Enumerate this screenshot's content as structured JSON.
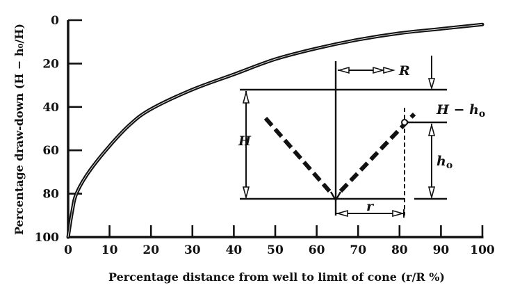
{
  "chart_data": {
    "type": "line",
    "title": "",
    "xlabel": "Percentage distance from well to limit of cone (r/R %)",
    "ylabel": "Percentage draw-down (H − h₀/H)",
    "xlim": [
      0,
      100
    ],
    "ylim": [
      100,
      0
    ],
    "y_inverted": true,
    "grid": false,
    "legend": null,
    "x_ticks": [
      0,
      10,
      20,
      30,
      40,
      50,
      60,
      70,
      80,
      90,
      100
    ],
    "y_ticks": [
      0,
      20,
      40,
      60,
      80,
      100
    ],
    "series": [
      {
        "name": "draw-down curve",
        "x": [
          0,
          1,
          2,
          5,
          10,
          15,
          20,
          30,
          40,
          50,
          60,
          70,
          80,
          90,
          100
        ],
        "y": [
          100,
          88,
          80,
          70,
          58,
          48,
          41,
          32,
          25,
          18,
          13,
          9,
          6,
          4,
          2
        ]
      }
    ],
    "inset_diagram": {
      "description": "Cone of depression around a pumped well",
      "labels": {
        "R": "R",
        "H": "H",
        "H_minus_h0": "H − h",
        "h0": "h",
        "r": "r",
        "subscript_o": "o"
      }
    }
  },
  "axes": {
    "x_title": "Percentage distance from well to limit of cone (r/R %)",
    "y_title": "Percentage draw-down (H − h₀/H)"
  }
}
